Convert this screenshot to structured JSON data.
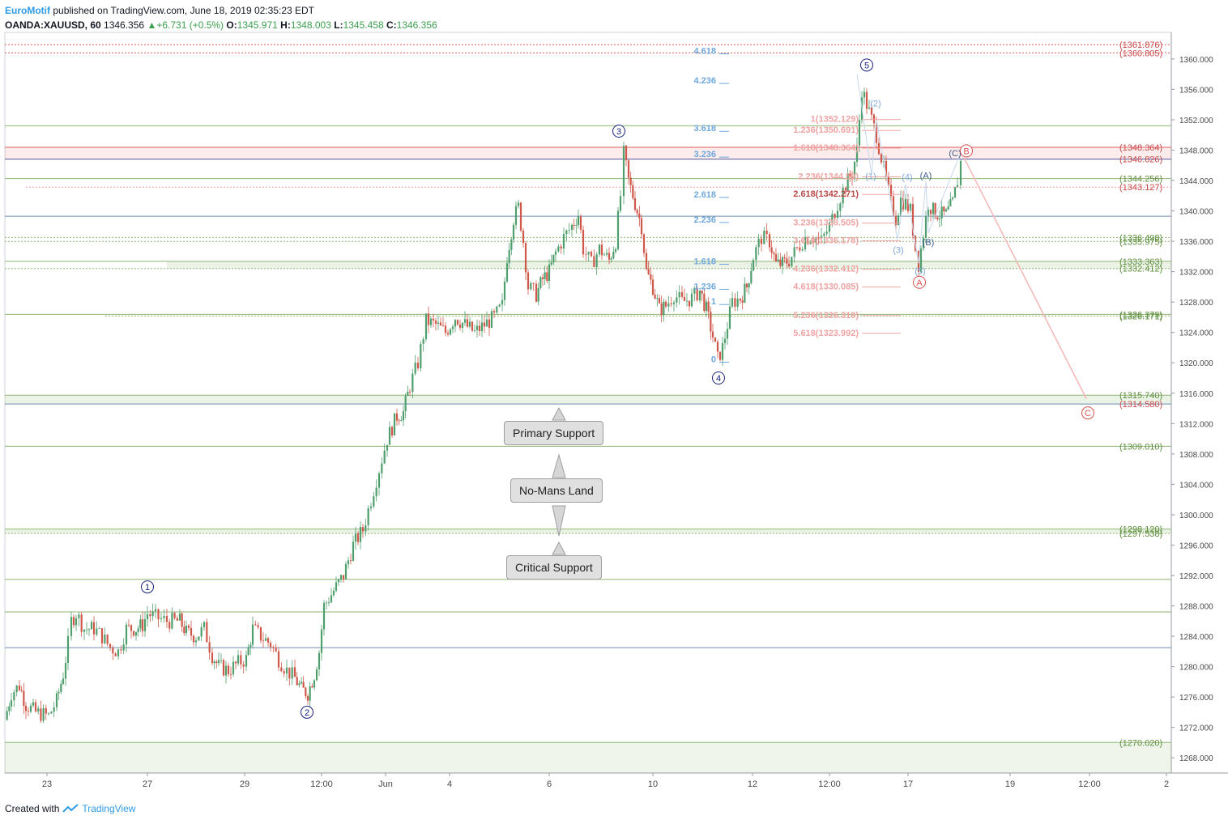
{
  "header": {
    "brand": "EuroMotif",
    "published": "published on TradingView.com, June 18, 2019 02:35:23 EDT",
    "symbol": "OANDA:XAUUSD, 60",
    "last": "1346.356",
    "change": "+6.731 (+0.5%)",
    "ohlc": {
      "o": "1345.971",
      "h": "1348.003",
      "l": "1345.458",
      "c": "1346.356"
    }
  },
  "footer": {
    "created_with": "Created with",
    "brand": "TradingView"
  },
  "chart_data": {
    "type": "candlestick",
    "price_axis": {
      "min": 1266,
      "max": 1363.5,
      "ticks": [
        1268,
        1272,
        1276,
        1280,
        1284,
        1288,
        1292,
        1296,
        1300,
        1304,
        1308,
        1312,
        1316,
        1320,
        1324,
        1328,
        1332,
        1336,
        1340,
        1344,
        1348,
        1352,
        1356,
        1360
      ]
    },
    "time_ticks": [
      {
        "label": "23",
        "t": 58
      },
      {
        "label": "27",
        "t": 182
      },
      {
        "label": "29",
        "t": 302
      },
      {
        "label": "12:00",
        "t": 397
      },
      {
        "label": "Jun",
        "t": 476
      },
      {
        "label": "4",
        "t": 555
      },
      {
        "label": "6",
        "t": 678
      },
      {
        "label": "10",
        "t": 806
      },
      {
        "label": "12",
        "t": 929
      },
      {
        "label": "12:00",
        "t": 1024
      },
      {
        "label": "17",
        "t": 1121
      },
      {
        "label": "19",
        "t": 1247
      },
      {
        "label": "12:00",
        "t": 1345
      },
      {
        "label": "2",
        "t": 1440
      }
    ],
    "price_path": [
      [
        6,
        1273
      ],
      [
        14,
        1276.5
      ],
      [
        24,
        1277.5
      ],
      [
        32,
        1275
      ],
      [
        44,
        1274
      ],
      [
        60,
        1273.5
      ],
      [
        70,
        1275.5
      ],
      [
        78,
        1279
      ],
      [
        84,
        1283
      ],
      [
        88,
        1286
      ],
      [
        94,
        1287
      ],
      [
        104,
        1285
      ],
      [
        116,
        1285
      ],
      [
        126,
        1284
      ],
      [
        136,
        1282.5
      ],
      [
        146,
        1282
      ],
      [
        156,
        1285
      ],
      [
        168,
        1285
      ],
      [
        176,
        1285.5
      ],
      [
        182,
        1287
      ],
      [
        192,
        1286.5
      ],
      [
        206,
        1286
      ],
      [
        222,
        1286
      ],
      [
        230,
        1284.5
      ],
      [
        242,
        1284
      ],
      [
        252,
        1285
      ],
      [
        262,
        1281.5
      ],
      [
        270,
        1280
      ],
      [
        282,
        1279.5
      ],
      [
        294,
        1280.5
      ],
      [
        304,
        1281
      ],
      [
        312,
        1285
      ],
      [
        322,
        1284
      ],
      [
        334,
        1283
      ],
      [
        344,
        1281
      ],
      [
        354,
        1279.5
      ],
      [
        364,
        1278.5
      ],
      [
        372,
        1277
      ],
      [
        380,
        1276.5
      ],
      [
        388,
        1279
      ],
      [
        394,
        1282
      ],
      [
        400,
        1288
      ],
      [
        412,
        1290
      ],
      [
        424,
        1292
      ],
      [
        436,
        1296
      ],
      [
        448,
        1298
      ],
      [
        458,
        1302
      ],
      [
        468,
        1306
      ],
      [
        478,
        1310
      ],
      [
        490,
        1313
      ],
      [
        498,
        1313.5
      ],
      [
        506,
        1317
      ],
      [
        516,
        1320
      ],
      [
        526,
        1325.5
      ],
      [
        538,
        1325
      ],
      [
        550,
        1324
      ],
      [
        562,
        1326
      ],
      [
        574,
        1325
      ],
      [
        586,
        1324
      ],
      [
        598,
        1325
      ],
      [
        610,
        1326
      ],
      [
        620,
        1327.5
      ],
      [
        626,
        1334
      ],
      [
        634,
        1339
      ],
      [
        640,
        1340.5
      ],
      [
        646,
        1336
      ],
      [
        652,
        1330
      ],
      [
        662,
        1329
      ],
      [
        670,
        1331
      ],
      [
        678,
        1332
      ],
      [
        686,
        1334.5
      ],
      [
        696,
        1336.5
      ],
      [
        706,
        1338
      ],
      [
        714,
        1339.5
      ],
      [
        720,
        1335
      ],
      [
        730,
        1333
      ],
      [
        740,
        1335
      ],
      [
        752,
        1333.5
      ],
      [
        760,
        1336
      ],
      [
        766,
        1342
      ],
      [
        770,
        1347.5
      ],
      [
        776,
        1344
      ],
      [
        784,
        1341
      ],
      [
        792,
        1338
      ],
      [
        798,
        1332
      ],
      [
        806,
        1330
      ],
      [
        814,
        1327
      ],
      [
        822,
        1327.5
      ],
      [
        832,
        1329
      ],
      [
        842,
        1328
      ],
      [
        854,
        1328.5
      ],
      [
        864,
        1329.5
      ],
      [
        872,
        1327
      ],
      [
        880,
        1323.5
      ],
      [
        886,
        1320.5
      ],
      [
        892,
        1322
      ],
      [
        898,
        1325
      ],
      [
        904,
        1328
      ],
      [
        914,
        1328.5
      ],
      [
        922,
        1330
      ],
      [
        930,
        1334
      ],
      [
        940,
        1336.5
      ],
      [
        950,
        1336
      ],
      [
        958,
        1333
      ],
      [
        966,
        1333
      ],
      [
        974,
        1333.5
      ],
      [
        984,
        1335
      ],
      [
        994,
        1336.5
      ],
      [
        1004,
        1336.5
      ],
      [
        1014,
        1336
      ],
      [
        1024,
        1338
      ],
      [
        1034,
        1341
      ],
      [
        1044,
        1343.5
      ],
      [
        1052,
        1345
      ],
      [
        1058,
        1348
      ],
      [
        1064,
        1356
      ],
      [
        1070,
        1354
      ],
      [
        1076,
        1352
      ],
      [
        1082,
        1350
      ],
      [
        1088,
        1347
      ],
      [
        1094,
        1344
      ],
      [
        1100,
        1341
      ],
      [
        1106,
        1339
      ],
      [
        1112,
        1341.5
      ],
      [
        1118,
        1341
      ],
      [
        1124,
        1340
      ],
      [
        1130,
        1335
      ],
      [
        1134,
        1333
      ],
      [
        1140,
        1337
      ],
      [
        1146,
        1341
      ],
      [
        1152,
        1340
      ],
      [
        1160,
        1339.5
      ],
      [
        1168,
        1339.5
      ],
      [
        1176,
        1341
      ],
      [
        1182,
        1344
      ],
      [
        1186,
        1346.4
      ]
    ],
    "horizontal_levels": [
      {
        "price": 1361.876,
        "label": "1361.876",
        "style": "dotted",
        "color": "#e05c5c"
      },
      {
        "price": 1360.805,
        "label": "1360.805",
        "style": "dotted",
        "color": "#e05c5c"
      },
      {
        "price": 1351.2,
        "label": "",
        "style": "solid",
        "color": "#8fb573"
      },
      {
        "price": 1348.364,
        "label": "1348.364",
        "style": "zone-top",
        "color": "#e05c5c"
      },
      {
        "price": 1346.826,
        "label": "1346.826",
        "style": "solid",
        "color": "#5a5a9a"
      },
      {
        "price": 1344.256,
        "label": "1344.256",
        "style": "solid",
        "color": "#8fb573"
      },
      {
        "price": 1343.127,
        "label": "1343.127",
        "style": "dotted",
        "color": "#f0a0a0"
      },
      {
        "price": 1339.3,
        "label": "",
        "style": "solid",
        "color": "#6d8fb3"
      },
      {
        "price": 1336.498,
        "label": "1336.498",
        "style": "dotted",
        "color": "#8fb573"
      },
      {
        "price": 1335.975,
        "label": "1335.975",
        "style": "dotted",
        "color": "#8fb573"
      },
      {
        "price": 1333.363,
        "label": "1333.363",
        "style": "zone-top",
        "color": "#8fb573"
      },
      {
        "price": 1332.412,
        "label": "1332.412",
        "style": "dotted",
        "color": "#8fb573"
      },
      {
        "price": 1326.379,
        "label": "1326.379",
        "style": "solid",
        "color": "#8fb573"
      },
      {
        "price": 1326.171,
        "label": "1326.171",
        "style": "dotted",
        "color": "#8fb573"
      },
      {
        "price": 1315.74,
        "label": "1315.740",
        "style": "zone-top",
        "color": "#8fb573"
      },
      {
        "price": 1314.58,
        "label": "1314.580",
        "style": "solid",
        "color": "#6d8fb3"
      },
      {
        "price": 1309.01,
        "label": "1309.010",
        "style": "solid",
        "color": "#8fb573"
      },
      {
        "price": 1298.12,
        "label": "1298.120",
        "style": "zone-top",
        "color": "#8fb573"
      },
      {
        "price": 1297.538,
        "label": "1297.538",
        "style": "dotted",
        "color": "#8fb573"
      },
      {
        "price": 1291.5,
        "label": "",
        "style": "solid",
        "color": "#8fb573"
      },
      {
        "price": 1287.2,
        "label": "",
        "style": "solid",
        "color": "#8fb573"
      },
      {
        "price": 1282.5,
        "label": "",
        "style": "solid",
        "color": "#6d8fb3"
      },
      {
        "price": 1270.02,
        "label": "1270.020",
        "style": "zone-top",
        "color": "#8fb573"
      }
    ],
    "fib_blue": [
      {
        "label": "4.618",
        "price": 1361.1
      },
      {
        "label": "4.236",
        "price": 1357.2
      },
      {
        "label": "3.618",
        "price": 1350.9
      },
      {
        "label": "3.236",
        "price": 1347.5
      },
      {
        "label": "2.618",
        "price": 1342.2
      },
      {
        "label": "2.236",
        "price": 1338.9
      },
      {
        "label": "1.618",
        "price": 1333.4
      },
      {
        "label": "1.236",
        "price": 1330.1
      },
      {
        "label": "1",
        "price": 1328.1
      },
      {
        "label": "0",
        "price": 1320.5
      }
    ],
    "fib_pink": [
      {
        "label": "1(1352.129)",
        "price": 1352.129
      },
      {
        "label": "1.236(1350.691)",
        "price": 1350.691
      },
      {
        "label": "1.618(1348.364)",
        "price": 1348.364
      },
      {
        "label": "2.236(1344.59)",
        "price": 1344.59
      },
      {
        "label": "2.618(1342.271)",
        "price": 1342.271
      },
      {
        "label": "3.236(1338.505)",
        "price": 1338.505
      },
      {
        "label": "3.618(1336.178)",
        "price": 1336.178
      },
      {
        "label": "4.236(1332.412)",
        "price": 1332.412
      },
      {
        "label": "4.618(1330.085)",
        "price": 1330.085
      },
      {
        "label": "5.236(1326.319)",
        "price": 1326.319
      },
      {
        "label": "5.618(1323.992)",
        "price": 1323.992
      }
    ],
    "waves_primary": [
      {
        "label": "1",
        "t": 182,
        "price": 1290.5
      },
      {
        "label": "2",
        "t": 379,
        "price": 1274.0
      },
      {
        "label": "3",
        "t": 764,
        "price": 1350.5
      },
      {
        "label": "4",
        "t": 887,
        "price": 1318.0
      },
      {
        "label": "5",
        "t": 1070,
        "price": 1359.2
      }
    ],
    "waves_minor": [
      {
        "label": "(1)",
        "t": 1075,
        "price": 1344.6
      },
      {
        "label": "(2)",
        "t": 1081,
        "price": 1354.2
      },
      {
        "label": "(3)",
        "t": 1109,
        "price": 1334.9
      },
      {
        "label": "(4)",
        "t": 1120,
        "price": 1344.5
      },
      {
        "label": "(5)",
        "t": 1136,
        "price": 1332.1
      }
    ],
    "waves_abc_small": [
      {
        "label": "(A)",
        "t": 1143,
        "price": 1344.7
      },
      {
        "label": "(B)",
        "t": 1146,
        "price": 1335.9
      },
      {
        "label": "(C)",
        "t": 1179,
        "price": 1347.6
      }
    ],
    "waves_abc_big": [
      {
        "label": "A",
        "t": 1135,
        "price": 1330.6
      },
      {
        "label": "B",
        "t": 1193,
        "price": 1347.9
      },
      {
        "label": "C",
        "t": 1343,
        "price": 1313.4
      }
    ],
    "callouts": [
      {
        "text": "Primary Support"
      },
      {
        "text": "No-Mans Land"
      },
      {
        "text": "Critical Support"
      }
    ]
  }
}
